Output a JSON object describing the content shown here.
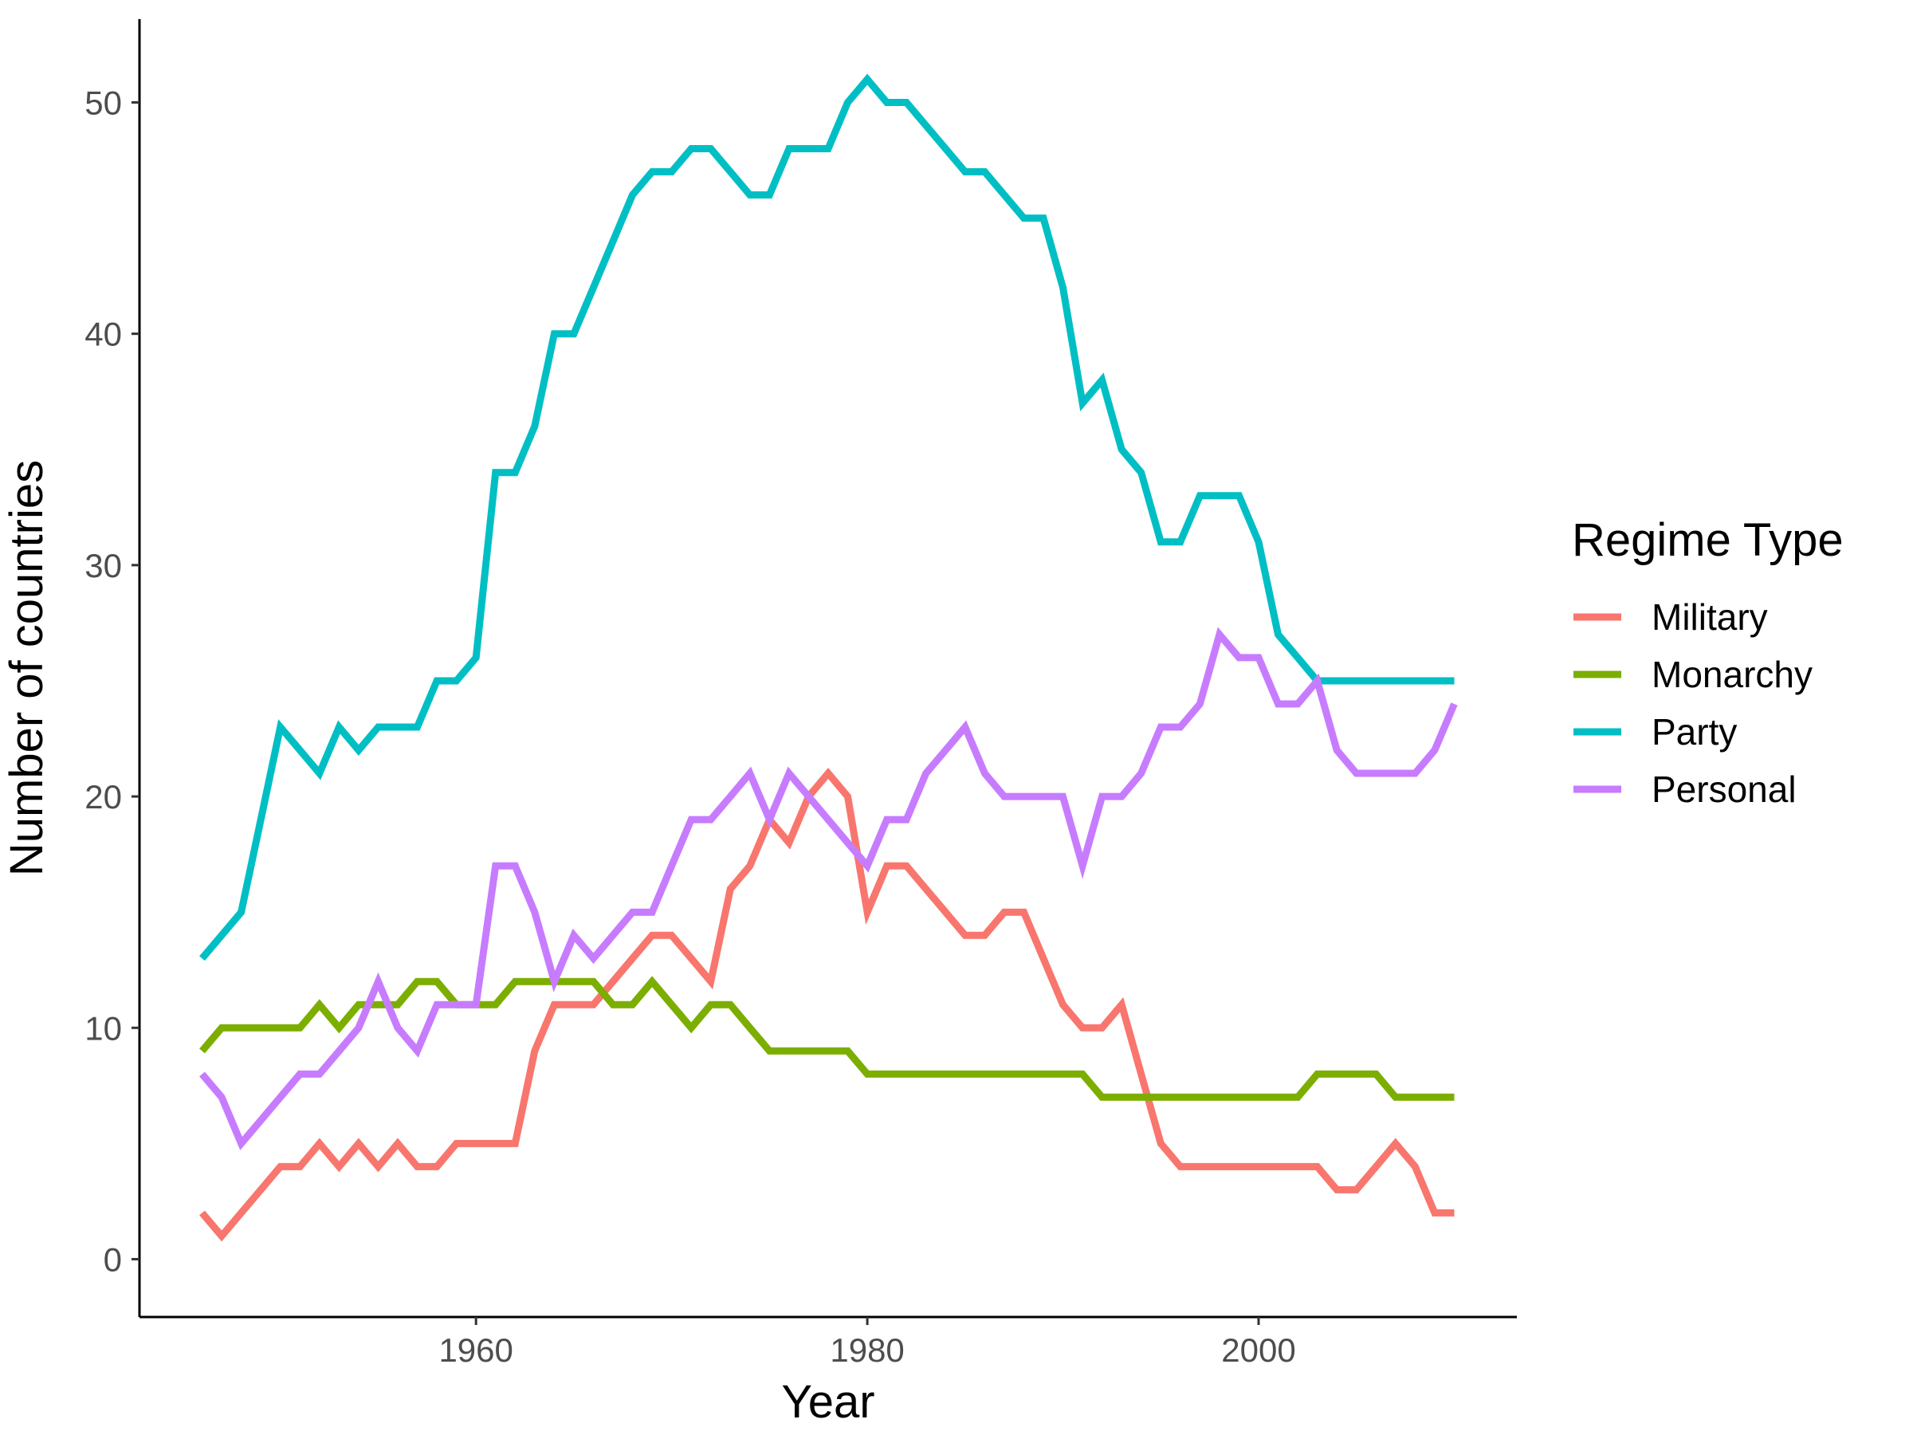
{
  "chart_data": {
    "type": "line",
    "xlabel": "Year",
    "ylabel": "Number of countries",
    "xlim": [
      1942.8,
      2013.2
    ],
    "ylim": [
      -2.5,
      53.6
    ],
    "x_ticks": [
      1960,
      1980,
      2000
    ],
    "y_ticks": [
      0,
      10,
      20,
      30,
      40,
      50
    ],
    "grid": false,
    "legend": {
      "title": "Regime Type",
      "placement": "right"
    },
    "x": [
      1946,
      1947,
      1948,
      1949,
      1950,
      1951,
      1952,
      1953,
      1954,
      1955,
      1956,
      1957,
      1958,
      1959,
      1960,
      1961,
      1962,
      1963,
      1964,
      1965,
      1966,
      1967,
      1968,
      1969,
      1970,
      1971,
      1972,
      1973,
      1974,
      1975,
      1976,
      1977,
      1978,
      1979,
      1980,
      1981,
      1982,
      1983,
      1984,
      1985,
      1986,
      1987,
      1988,
      1989,
      1990,
      1991,
      1992,
      1993,
      1994,
      1995,
      1996,
      1997,
      1998,
      1999,
      2000,
      2001,
      2002,
      2003,
      2004,
      2005,
      2006,
      2007,
      2008,
      2009,
      2010
    ],
    "series": [
      {
        "name": "Military",
        "color": "#F8766D",
        "values": [
          2,
          1,
          2,
          3,
          4,
          4,
          5,
          4,
          5,
          4,
          5,
          4,
          4,
          5,
          5,
          5,
          5,
          9,
          11,
          11,
          11,
          12,
          13,
          14,
          14,
          13,
          12,
          16,
          17,
          19,
          18,
          20,
          21,
          20,
          15,
          17,
          17,
          16,
          15,
          14,
          14,
          15,
          15,
          13,
          11,
          10,
          10,
          11,
          8,
          5,
          4,
          4,
          4,
          4,
          4,
          4,
          4,
          4,
          3,
          3,
          4,
          5,
          4,
          2,
          2
        ]
      },
      {
        "name": "Monarchy",
        "color": "#7CAE00",
        "values": [
          9,
          10,
          10,
          10,
          10,
          10,
          11,
          10,
          11,
          11,
          11,
          12,
          12,
          11,
          11,
          11,
          12,
          12,
          12,
          12,
          12,
          11,
          11,
          12,
          11,
          10,
          11,
          11,
          10,
          9,
          9,
          9,
          9,
          9,
          8,
          8,
          8,
          8,
          8,
          8,
          8,
          8,
          8,
          8,
          8,
          8,
          7,
          7,
          7,
          7,
          7,
          7,
          7,
          7,
          7,
          7,
          7,
          8,
          8,
          8,
          8,
          7,
          7,
          7,
          7
        ]
      },
      {
        "name": "Party",
        "color": "#00BFC4",
        "values": [
          13,
          14,
          15,
          19,
          23,
          22,
          21,
          23,
          22,
          23,
          23,
          23,
          25,
          25,
          26,
          34,
          34,
          36,
          40,
          40,
          42,
          44,
          46,
          47,
          47,
          48,
          48,
          47,
          46,
          46,
          48,
          48,
          48,
          50,
          51,
          50,
          50,
          49,
          48,
          47,
          47,
          46,
          45,
          45,
          42,
          37,
          38,
          35,
          34,
          31,
          31,
          33,
          33,
          33,
          31,
          27,
          26,
          25,
          25,
          25,
          25,
          25,
          25,
          25,
          25
        ]
      },
      {
        "name": "Personal",
        "color": "#C77CFF",
        "values": [
          8,
          7,
          5,
          6,
          7,
          8,
          8,
          9,
          10,
          12,
          10,
          9,
          11,
          11,
          11,
          17,
          17,
          15,
          12,
          14,
          13,
          14,
          15,
          15,
          17,
          19,
          19,
          20,
          21,
          19,
          21,
          20,
          19,
          18,
          17,
          19,
          19,
          21,
          22,
          23,
          21,
          20,
          20,
          20,
          20,
          17,
          20,
          20,
          21,
          23,
          23,
          24,
          27,
          26,
          26,
          24,
          24,
          25,
          22,
          21,
          21,
          21,
          21,
          22,
          24
        ]
      }
    ]
  }
}
